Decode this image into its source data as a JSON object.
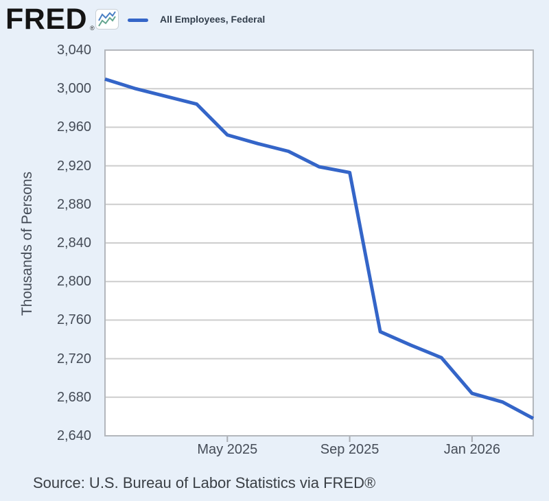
{
  "header": {
    "logo_text": "FRED",
    "registered_mark": "®",
    "icon": {
      "name": "mini-line-chart-icon",
      "line1_color": "#4a7fc4",
      "line2_color": "#63a58f"
    },
    "legend": {
      "label": "All Employees, Federal",
      "swatch_color": "#3465c8"
    }
  },
  "chart_data": {
    "type": "line",
    "title": "All Employees, Federal",
    "ylabel": "Thousands of Persons",
    "categories": [
      "Jan 2025",
      "Feb 2025",
      "Mar 2025",
      "Apr 2025",
      "May 2025",
      "Jun 2025",
      "Jul 2025",
      "Aug 2025",
      "Sep 2025",
      "Oct 2025",
      "Nov 2025",
      "Dec 2025",
      "Jan 2026",
      "Feb 2026",
      "Mar 2026"
    ],
    "values": [
      3010,
      3000,
      2992,
      2984,
      2952,
      2943,
      2935,
      2919,
      2913,
      2748,
      2734,
      2721,
      2684,
      2675,
      2658
    ],
    "units": "Thousands of Persons",
    "ylim": [
      2640,
      3040
    ],
    "grid": true,
    "legend_position": "top-left",
    "line_color": "#3465c8",
    "grid_color": "#cdcdcd",
    "plot_border_color": "#b3b7bc",
    "tick_color": "#a9adb3",
    "y_ticks": [
      {
        "value": 3040,
        "label": "3,040"
      },
      {
        "value": 3000,
        "label": "3,000"
      },
      {
        "value": 2960,
        "label": "2,960"
      },
      {
        "value": 2920,
        "label": "2,920"
      },
      {
        "value": 2880,
        "label": "2,880"
      },
      {
        "value": 2840,
        "label": "2,840"
      },
      {
        "value": 2800,
        "label": "2,800"
      },
      {
        "value": 2760,
        "label": "2,760"
      },
      {
        "value": 2720,
        "label": "2,720"
      },
      {
        "value": 2680,
        "label": "2,680"
      },
      {
        "value": 2640,
        "label": "2,640"
      }
    ],
    "x_ticks": [
      {
        "label": "May 2025",
        "month_index": 4
      },
      {
        "label": "Sep 2025",
        "month_index": 8
      },
      {
        "label": "Jan 2026",
        "month_index": 12
      }
    ]
  },
  "footer": {
    "source_text": "Source: U.S. Bureau of Labor Statistics via FRED®"
  }
}
